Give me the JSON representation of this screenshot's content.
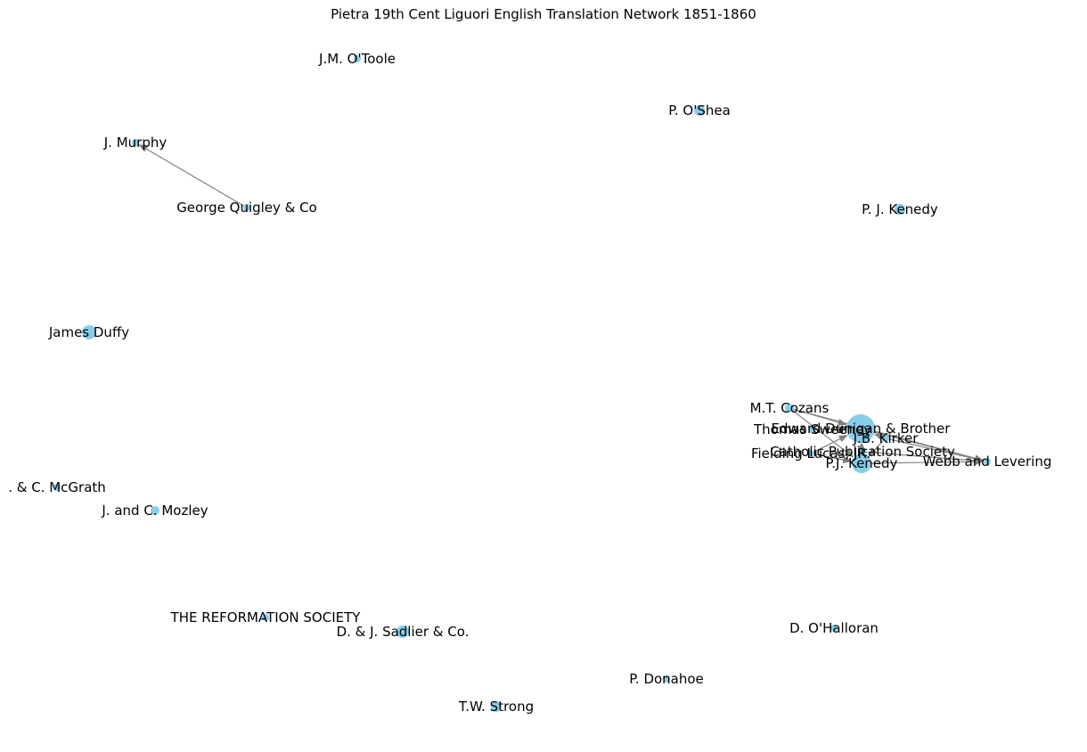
{
  "title": "Pietra 19th Cent Liguori English Translation Network 1851-1860",
  "colors": {
    "node": "#87ceeb",
    "edge": "#808080",
    "label": "#000000"
  },
  "nodes": [
    {
      "id": "omura",
      "label": "J.M. O'Toole"
    },
    {
      "id": "poshea",
      "label": "P. O'Shea"
    },
    {
      "id": "jmurphy",
      "label": "J. Murphy"
    },
    {
      "id": "quigley",
      "label": "George Quigley & Co"
    },
    {
      "id": "pjkenedy2",
      "label": "P. J. Kenedy"
    },
    {
      "id": "duffy",
      "label": "James Duffy"
    },
    {
      "id": "cozans",
      "label": "M.T. Cozans"
    },
    {
      "id": "dunigan",
      "label": "Edward Dunigan & Brother"
    },
    {
      "id": "sweeney",
      "label": "Thomas Sweeney"
    },
    {
      "id": "kirker",
      "label": "J.B. Kirker"
    },
    {
      "id": "lucas",
      "label": "Fielding Lucas, JR."
    },
    {
      "id": "cps",
      "label": "Catholic Publication Society"
    },
    {
      "id": "pjkenedy",
      "label": "P.J. Kenedy"
    },
    {
      "id": "webb",
      "label": "Webb and Levering"
    },
    {
      "id": "mcgrath",
      "label": ". & C. McGrath"
    },
    {
      "id": "mozley",
      "label": "J. and C. Mozley"
    },
    {
      "id": "reformation",
      "label": "THE REFORMATION SOCIETY"
    },
    {
      "id": "sadlier",
      "label": "D. & J. Sadlier & Co."
    },
    {
      "id": "ohalloran",
      "label": "D. O'Halloran"
    },
    {
      "id": "donahoe",
      "label": "P. Donahoe"
    },
    {
      "id": "strong",
      "label": "T.W. Strong"
    }
  ],
  "edges": [
    {
      "source": "quigley",
      "target": "jmurphy"
    },
    {
      "source": "cozans",
      "target": "dunigan"
    },
    {
      "source": "cozans",
      "target": "webb"
    },
    {
      "source": "sweeney",
      "target": "dunigan"
    },
    {
      "source": "kirker",
      "target": "dunigan"
    },
    {
      "source": "dunigan",
      "target": "webb"
    },
    {
      "source": "kirker",
      "target": "webb"
    },
    {
      "source": "lucas",
      "target": "dunigan"
    },
    {
      "source": "cps",
      "target": "dunigan"
    },
    {
      "source": "cps",
      "target": "webb"
    },
    {
      "source": "pjkenedy",
      "target": "webb"
    },
    {
      "source": "pjkenedy",
      "target": "dunigan"
    },
    {
      "source": "cozans",
      "target": "pjkenedy"
    },
    {
      "source": "lucas",
      "target": "pjkenedy"
    },
    {
      "source": "kirker",
      "target": "pjkenedy"
    }
  ]
}
